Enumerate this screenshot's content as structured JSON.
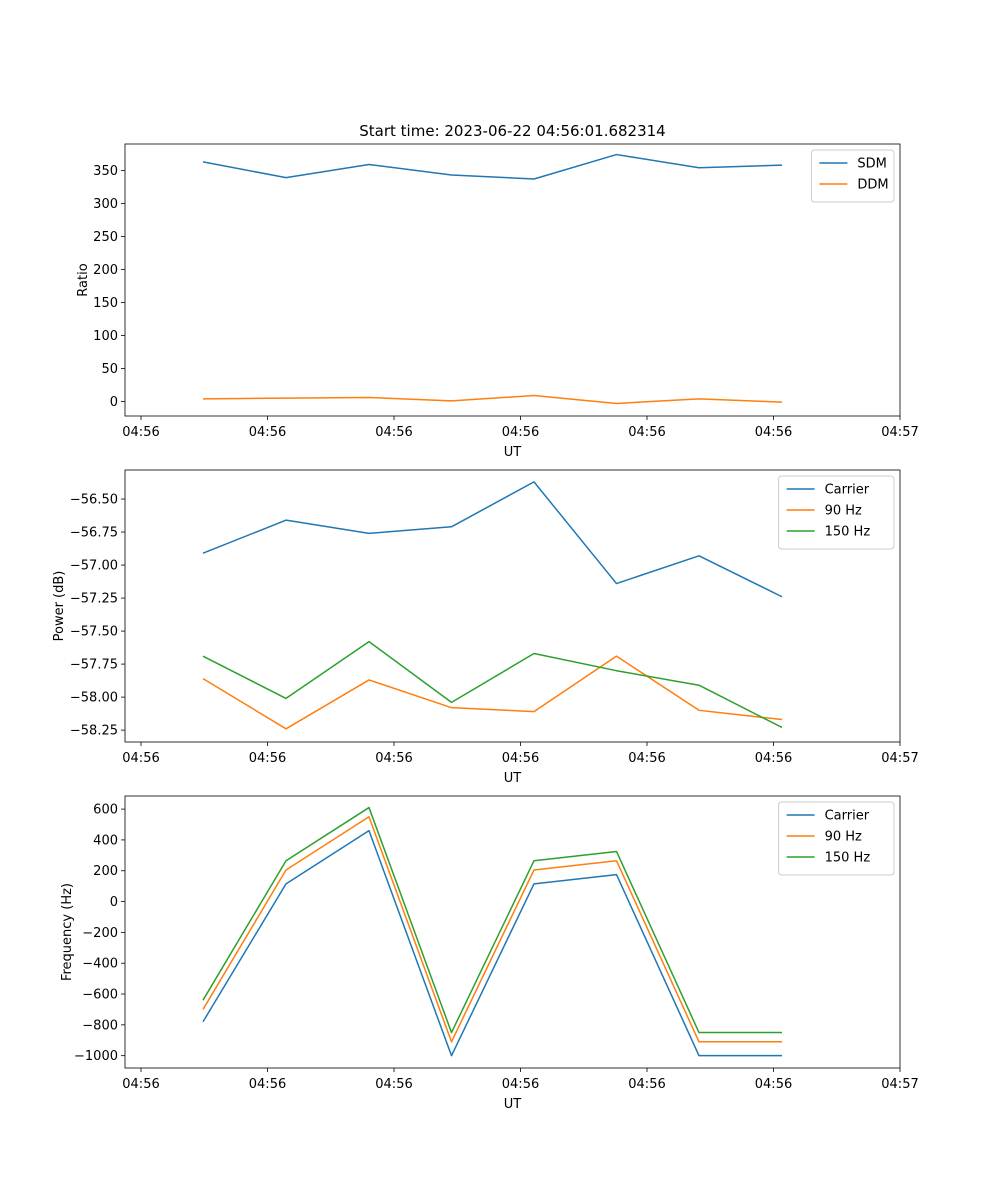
{
  "figure": {
    "title": "Start time: 2023-06-22 04:56:01.682314"
  },
  "chart_data": [
    {
      "type": "line",
      "xlabel": "UT",
      "ylabel": "Ratio",
      "x_tick_labels": [
        "04:56",
        "04:56",
        "04:56",
        "04:56",
        "04:56",
        "04:56",
        "04:56",
        "04:57"
      ],
      "y_ticks": [
        0,
        50,
        100,
        150,
        200,
        250,
        300,
        350
      ],
      "ylim": [
        -22,
        390
      ],
      "legend": "top-right",
      "grid": false,
      "series": [
        {
          "name": "SDM",
          "color": "#1f77b4",
          "values": [
            363,
            339,
            359,
            343,
            337,
            374,
            354,
            358
          ]
        },
        {
          "name": "DDM",
          "color": "#ff7f0e",
          "values": [
            4,
            5,
            6,
            1,
            9,
            -3,
            4,
            -1
          ]
        }
      ]
    },
    {
      "type": "line",
      "xlabel": "UT",
      "ylabel": "Power (dB)",
      "x_tick_labels": [
        "04:56",
        "04:56",
        "04:56",
        "04:56",
        "04:56",
        "04:56",
        "04:56",
        "04:57"
      ],
      "y_ticks": [
        -58.25,
        -58.0,
        -57.75,
        -57.5,
        -57.25,
        -57.0,
        -56.75,
        -56.5
      ],
      "y_tick_labels": [
        "−58.25",
        "−58.00",
        "−57.75",
        "−57.50",
        "−57.25",
        "−57.00",
        "−56.75",
        "−56.50"
      ],
      "ylim": [
        -58.34,
        -56.28
      ],
      "legend": "top-right",
      "grid": false,
      "series": [
        {
          "name": "Carrier",
          "color": "#1f77b4",
          "values": [
            -56.91,
            -56.66,
            -56.76,
            -56.71,
            -56.37,
            -57.14,
            -56.93,
            -57.24
          ]
        },
        {
          "name": "90 Hz",
          "color": "#ff7f0e",
          "values": [
            -57.86,
            -58.24,
            -57.87,
            -58.08,
            -58.11,
            -57.69,
            -58.1,
            -58.17
          ]
        },
        {
          "name": "150 Hz",
          "color": "#2ca02c",
          "values": [
            -57.69,
            -58.01,
            -57.58,
            -58.04,
            -57.67,
            -57.8,
            -57.91,
            -58.23
          ]
        }
      ]
    },
    {
      "type": "line",
      "xlabel": "UT",
      "ylabel": "Frequency (Hz)",
      "x_tick_labels": [
        "04:56",
        "04:56",
        "04:56",
        "04:56",
        "04:56",
        "04:56",
        "04:56",
        "04:57"
      ],
      "y_ticks": [
        -1000,
        -800,
        -600,
        -400,
        -200,
        0,
        200,
        400,
        600
      ],
      "y_tick_labels": [
        "−1000",
        "−800",
        "−600",
        "−400",
        "−200",
        "0",
        "200",
        "400",
        "600"
      ],
      "ylim": [
        -1080,
        685
      ],
      "legend": "top-right",
      "grid": false,
      "series": [
        {
          "name": "Carrier",
          "color": "#1f77b4",
          "values": [
            -780,
            115,
            460,
            -1000,
            115,
            175,
            -1000,
            -1000
          ]
        },
        {
          "name": "90 Hz",
          "color": "#ff7f0e",
          "values": [
            -700,
            205,
            550,
            -910,
            205,
            265,
            -910,
            -910
          ]
        },
        {
          "name": "150 Hz",
          "color": "#2ca02c",
          "values": [
            -640,
            265,
            610,
            -850,
            265,
            325,
            -850,
            -850
          ]
        }
      ]
    }
  ]
}
